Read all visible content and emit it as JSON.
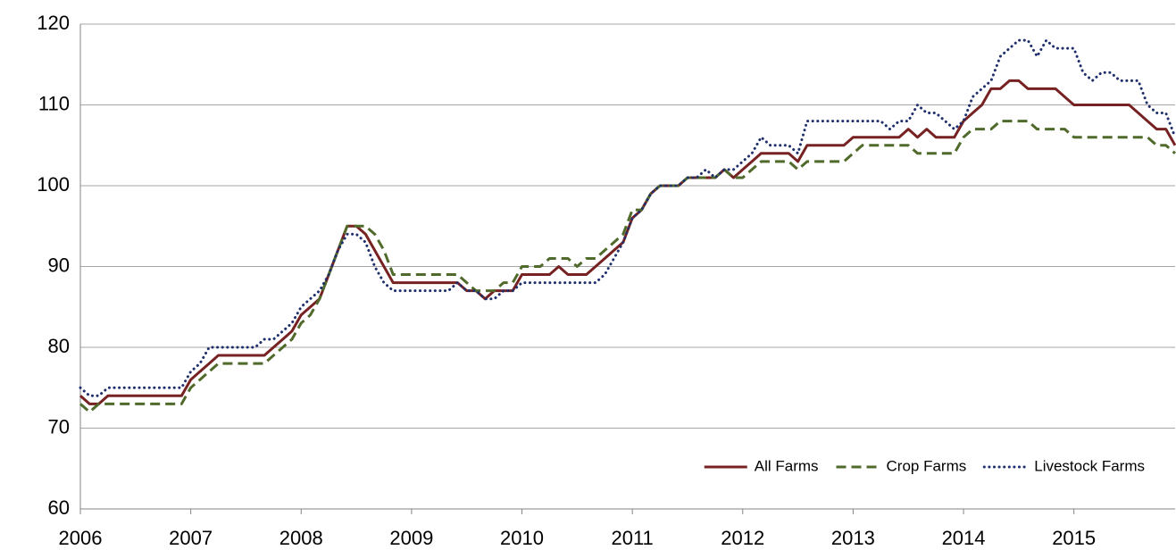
{
  "chart_data": {
    "type": "line",
    "categories": [
      "2006",
      null,
      null,
      null,
      null,
      null,
      null,
      null,
      null,
      null,
      null,
      null,
      "2007",
      null,
      null,
      null,
      null,
      null,
      null,
      null,
      null,
      null,
      null,
      null,
      "2008",
      null,
      null,
      null,
      null,
      null,
      null,
      null,
      null,
      null,
      null,
      null,
      "2009",
      null,
      null,
      null,
      null,
      null,
      null,
      null,
      null,
      null,
      null,
      null,
      "2010",
      null,
      null,
      null,
      null,
      null,
      null,
      null,
      null,
      null,
      null,
      null,
      "2011",
      null,
      null,
      null,
      null,
      null,
      null,
      null,
      null,
      null,
      null,
      null,
      "2012",
      null,
      null,
      null,
      null,
      null,
      null,
      null,
      null,
      null,
      null,
      null,
      "2013",
      null,
      null,
      null,
      null,
      null,
      null,
      null,
      null,
      null,
      null,
      null,
      "2014",
      null,
      null,
      null,
      null,
      null,
      null,
      null,
      null,
      null,
      null,
      null,
      "2015",
      null,
      null,
      null,
      null,
      null,
      null,
      null,
      null,
      null,
      null,
      null
    ],
    "series": [
      {
        "name": "All Farms",
        "color": "#772222",
        "dash": "solid",
        "values": [
          74,
          73,
          73,
          74,
          74,
          74,
          74,
          74,
          74,
          74,
          74,
          74,
          76,
          77,
          78,
          79,
          79,
          79,
          79,
          79,
          79,
          80,
          81,
          82,
          84,
          85,
          86,
          89,
          92,
          95,
          95,
          94,
          92,
          90,
          88,
          88,
          88,
          88,
          88,
          88,
          88,
          88,
          87,
          87,
          86,
          87,
          87,
          87,
          89,
          89,
          89,
          89,
          90,
          89,
          89,
          89,
          90,
          91,
          92,
          93,
          96,
          97,
          99,
          100,
          100,
          100,
          101,
          101,
          101,
          101,
          102,
          101,
          102,
          103,
          104,
          104,
          104,
          104,
          103,
          105,
          105,
          105,
          105,
          105,
          106,
          106,
          106,
          106,
          106,
          106,
          107,
          106,
          107,
          106,
          106,
          106,
          108,
          109,
          110,
          112,
          112,
          113,
          113,
          112,
          112,
          112,
          112,
          111,
          110,
          110,
          110,
          110,
          110,
          110,
          110,
          109,
          108,
          107,
          107,
          105
        ]
      },
      {
        "name": "Crop Farms",
        "color": "#4f6a2b",
        "dash": "dashed",
        "values": [
          73,
          72,
          73,
          73,
          73,
          73,
          73,
          73,
          73,
          73,
          73,
          73,
          75,
          76,
          77,
          78,
          78,
          78,
          78,
          78,
          78,
          79,
          80,
          81,
          83,
          84,
          86,
          89,
          92,
          95,
          95,
          95,
          94,
          92,
          89,
          89,
          89,
          89,
          89,
          89,
          89,
          89,
          88,
          87,
          87,
          87,
          88,
          88,
          90,
          90,
          90,
          91,
          91,
          91,
          90,
          91,
          91,
          92,
          93,
          94,
          97,
          97,
          99,
          100,
          100,
          100,
          101,
          101,
          101,
          101,
          102,
          101,
          101,
          102,
          103,
          103,
          103,
          103,
          102,
          103,
          103,
          103,
          103,
          103,
          104,
          105,
          105,
          105,
          105,
          105,
          105,
          104,
          104,
          104,
          104,
          104,
          106,
          107,
          107,
          107,
          108,
          108,
          108,
          108,
          107,
          107,
          107,
          107,
          106,
          106,
          106,
          106,
          106,
          106,
          106,
          106,
          106,
          105,
          105,
          104
        ]
      },
      {
        "name": "Livestock Farms",
        "color": "#1f2f6b",
        "dash": "dotted",
        "values": [
          75,
          74,
          74,
          75,
          75,
          75,
          75,
          75,
          75,
          75,
          75,
          75,
          77,
          78,
          80,
          80,
          80,
          80,
          80,
          80,
          81,
          81,
          82,
          83,
          85,
          86,
          87,
          89,
          92,
          94,
          94,
          93,
          90,
          88,
          87,
          87,
          87,
          87,
          87,
          87,
          87,
          88,
          87,
          87,
          86,
          86,
          87,
          87,
          88,
          88,
          88,
          88,
          88,
          88,
          88,
          88,
          88,
          89,
          91,
          93,
          96,
          97,
          99,
          100,
          100,
          100,
          101,
          101,
          102,
          101,
          102,
          102,
          103,
          104,
          106,
          105,
          105,
          105,
          104,
          108,
          108,
          108,
          108,
          108,
          108,
          108,
          108,
          108,
          107,
          108,
          108,
          110,
          109,
          109,
          108,
          107,
          108,
          111,
          112,
          113,
          116,
          117,
          118,
          118,
          116,
          118,
          117,
          117,
          117,
          114,
          113,
          114,
          114,
          113,
          113,
          113,
          110,
          109,
          109,
          106
        ]
      }
    ],
    "ylim": [
      60,
      120
    ],
    "yticks": [
      60,
      70,
      80,
      90,
      100,
      110,
      120
    ],
    "grid": true,
    "legend": "lower right"
  }
}
